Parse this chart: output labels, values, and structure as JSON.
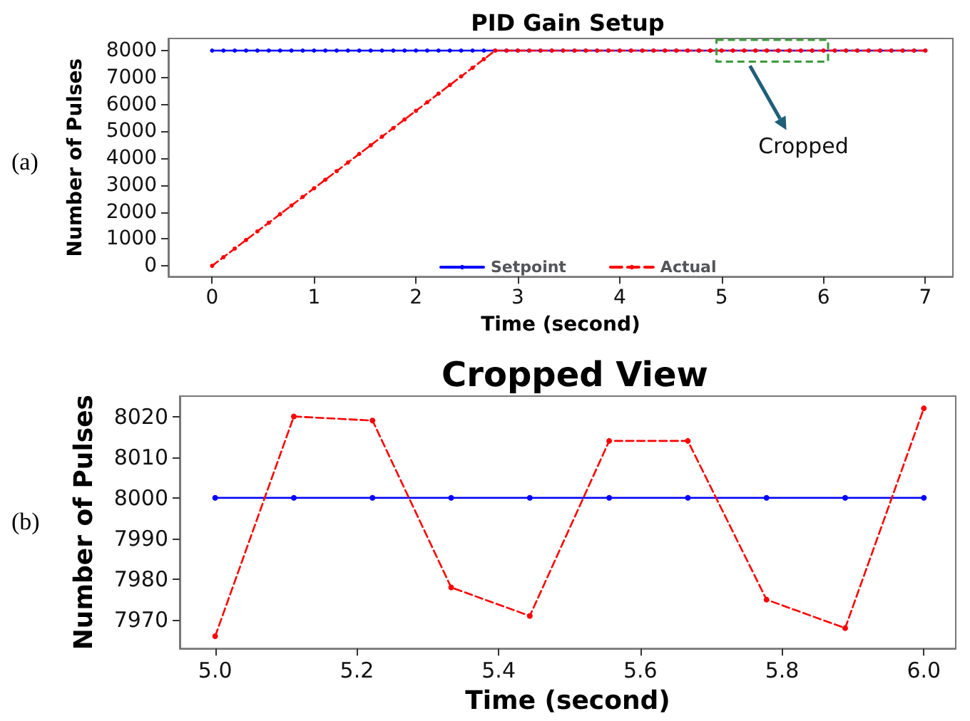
{
  "chart_data": [
    {
      "type": "line",
      "title": "PID Gain Setup",
      "xlabel": "Time (second)",
      "ylabel": "Number of Pulses",
      "annotations": [
        "(a)",
        "Cropped"
      ],
      "x": [
        0,
        0.111,
        0.222,
        0.333,
        0.444,
        0.556,
        0.667,
        0.778,
        0.889,
        1,
        1.111,
        1.222,
        1.333,
        1.444,
        1.556,
        1.667,
        1.778,
        1.889,
        2,
        2.111,
        2.222,
        2.333,
        2.444,
        2.556,
        2.667,
        2.778,
        2.889,
        3,
        3.111,
        3.222,
        3.333,
        3.444,
        3.556,
        3.667,
        3.778,
        3.889,
        4,
        4.111,
        4.222,
        4.333,
        4.444,
        4.556,
        4.667,
        4.778,
        4.889,
        5,
        5.111,
        5.222,
        5.333,
        5.444,
        5.556,
        5.667,
        5.778,
        5.889,
        6,
        6.111,
        6.222,
        6.333,
        6.444,
        6.556,
        6.667,
        6.778,
        6.889,
        7
      ],
      "series": [
        {
          "name": "Setpoint",
          "color": "#0000ff",
          "line_style": "solid",
          "values": [
            8000,
            8000,
            8000,
            8000,
            8000,
            8000,
            8000,
            8000,
            8000,
            8000,
            8000,
            8000,
            8000,
            8000,
            8000,
            8000,
            8000,
            8000,
            8000,
            8000,
            8000,
            8000,
            8000,
            8000,
            8000,
            8000,
            8000,
            8000,
            8000,
            8000,
            8000,
            8000,
            8000,
            8000,
            8000,
            8000,
            8000,
            8000,
            8000,
            8000,
            8000,
            8000,
            8000,
            8000,
            8000,
            8000,
            8000,
            8000,
            8000,
            8000,
            8000,
            8000,
            8000,
            8000,
            8000,
            8000,
            8000,
            8000,
            8000,
            8000,
            8000,
            8000,
            8000,
            8000
          ]
        },
        {
          "name": "Actual",
          "color": "#ff0000",
          "line_style": "dashed",
          "values": [
            0,
            320,
            640,
            960,
            1280,
            1600,
            1920,
            2240,
            2560,
            2880,
            3200,
            3520,
            3840,
            4160,
            4480,
            4800,
            5120,
            5440,
            5760,
            6080,
            6400,
            6720,
            7040,
            7360,
            7680,
            8000,
            8000,
            8000,
            8000,
            8000,
            8000,
            8000,
            8000,
            8000,
            8000,
            8000,
            8000,
            8000,
            8000,
            8000,
            8000,
            8000,
            8000,
            8000,
            8000,
            8000,
            8000,
            8000,
            8000,
            8000,
            8000,
            8000,
            8000,
            8000,
            8000,
            8000,
            8000,
            8000,
            8000,
            8000,
            8000,
            8000,
            8000,
            8000
          ]
        }
      ],
      "xlim": [
        -0.43,
        7.27
      ],
      "xticks": [
        0,
        1,
        2,
        3,
        4,
        5,
        6,
        7
      ],
      "ylim": [
        -400,
        8450
      ],
      "yticks": [
        0,
        1000,
        2000,
        3000,
        4000,
        5000,
        6000,
        7000,
        8000
      ],
      "grid": false,
      "legend": "bottom",
      "marker": "circle"
    },
    {
      "type": "line",
      "title": "Cropped View",
      "xlabel": "Time (second)",
      "ylabel": "Number of Pulses",
      "annotations": [
        "(b)"
      ],
      "x": [
        5,
        5.111,
        5.222,
        5.333,
        5.444,
        5.556,
        5.667,
        5.778,
        5.889,
        6
      ],
      "series": [
        {
          "color": "#0000ff",
          "line_style": "solid",
          "values": [
            8000,
            8000,
            8000,
            8000,
            8000,
            8000,
            8000,
            8000,
            8000,
            8000
          ]
        },
        {
          "color": "#ff0000",
          "line_style": "dashed",
          "values": [
            7966,
            8020,
            8019,
            7978,
            7971,
            8014,
            8014,
            7975,
            7968,
            8022
          ]
        }
      ],
      "xlim": [
        4.95,
        6.045
      ],
      "xticks": [
        {
          "value": 5,
          "label": "5.0"
        },
        {
          "value": 5.2,
          "label": "5.2"
        },
        {
          "value": 5.4,
          "label": "5.4"
        },
        {
          "value": 5.6,
          "label": "5.6"
        },
        {
          "value": 5.8,
          "label": "5.8"
        },
        {
          "value": 6,
          "label": "6.0"
        }
      ],
      "ylim": [
        7963,
        8025
      ],
      "yticks": [
        7970,
        7980,
        7990,
        8000,
        8010,
        8020
      ],
      "grid": false,
      "legend": false,
      "marker": "circle"
    }
  ]
}
